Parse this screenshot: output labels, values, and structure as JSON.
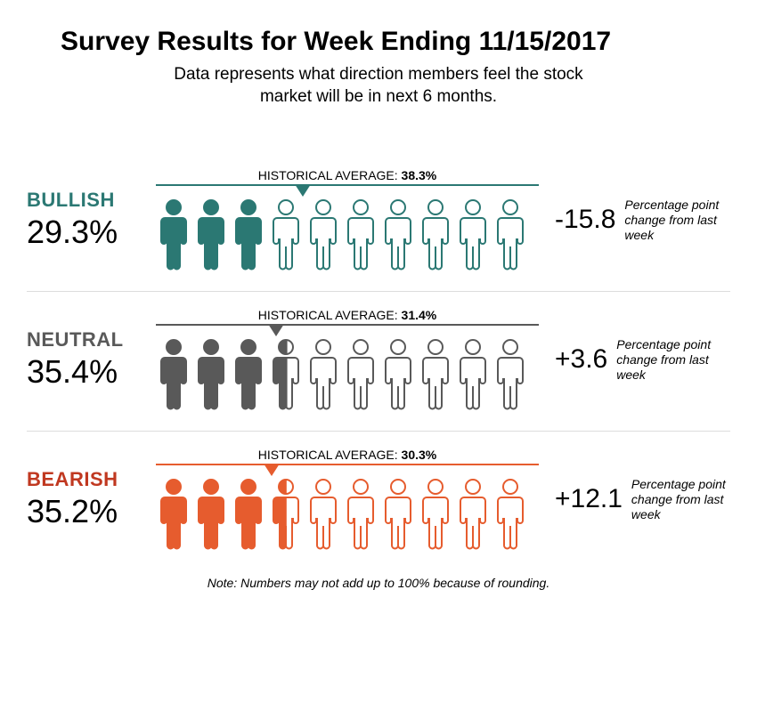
{
  "title": "Survey Results for Week Ending 11/15/2017",
  "subtitle": "Data represents what direction members feel the stock market will be in next 6 months.",
  "hist_prefix": "HISTORICAL AVERAGE: ",
  "change_text": "Percentage point change from last week",
  "note": "Note: Numbers may not add up to 100% because of rounding.",
  "icon_count": 10,
  "text_color": "#000000",
  "background_color": "#ffffff",
  "sentiments": [
    {
      "label": "BULLISH",
      "pct": 29.3,
      "pct_display": "29.3%",
      "hist": 38.3,
      "hist_display": "38.3%",
      "change": "-15.8",
      "color": "#2b7873",
      "label_color": "#2b7873"
    },
    {
      "label": "NEUTRAL",
      "pct": 35.4,
      "pct_display": "35.4%",
      "hist": 31.4,
      "hist_display": "31.4%",
      "change": "+3.6",
      "color": "#595959",
      "label_color": "#595959"
    },
    {
      "label": "BEARISH",
      "pct": 35.2,
      "pct_display": "35.2%",
      "hist": 30.3,
      "hist_display": "30.3%",
      "change": "+12.1",
      "color": "#e65c2e",
      "label_color": "#c03820"
    }
  ]
}
